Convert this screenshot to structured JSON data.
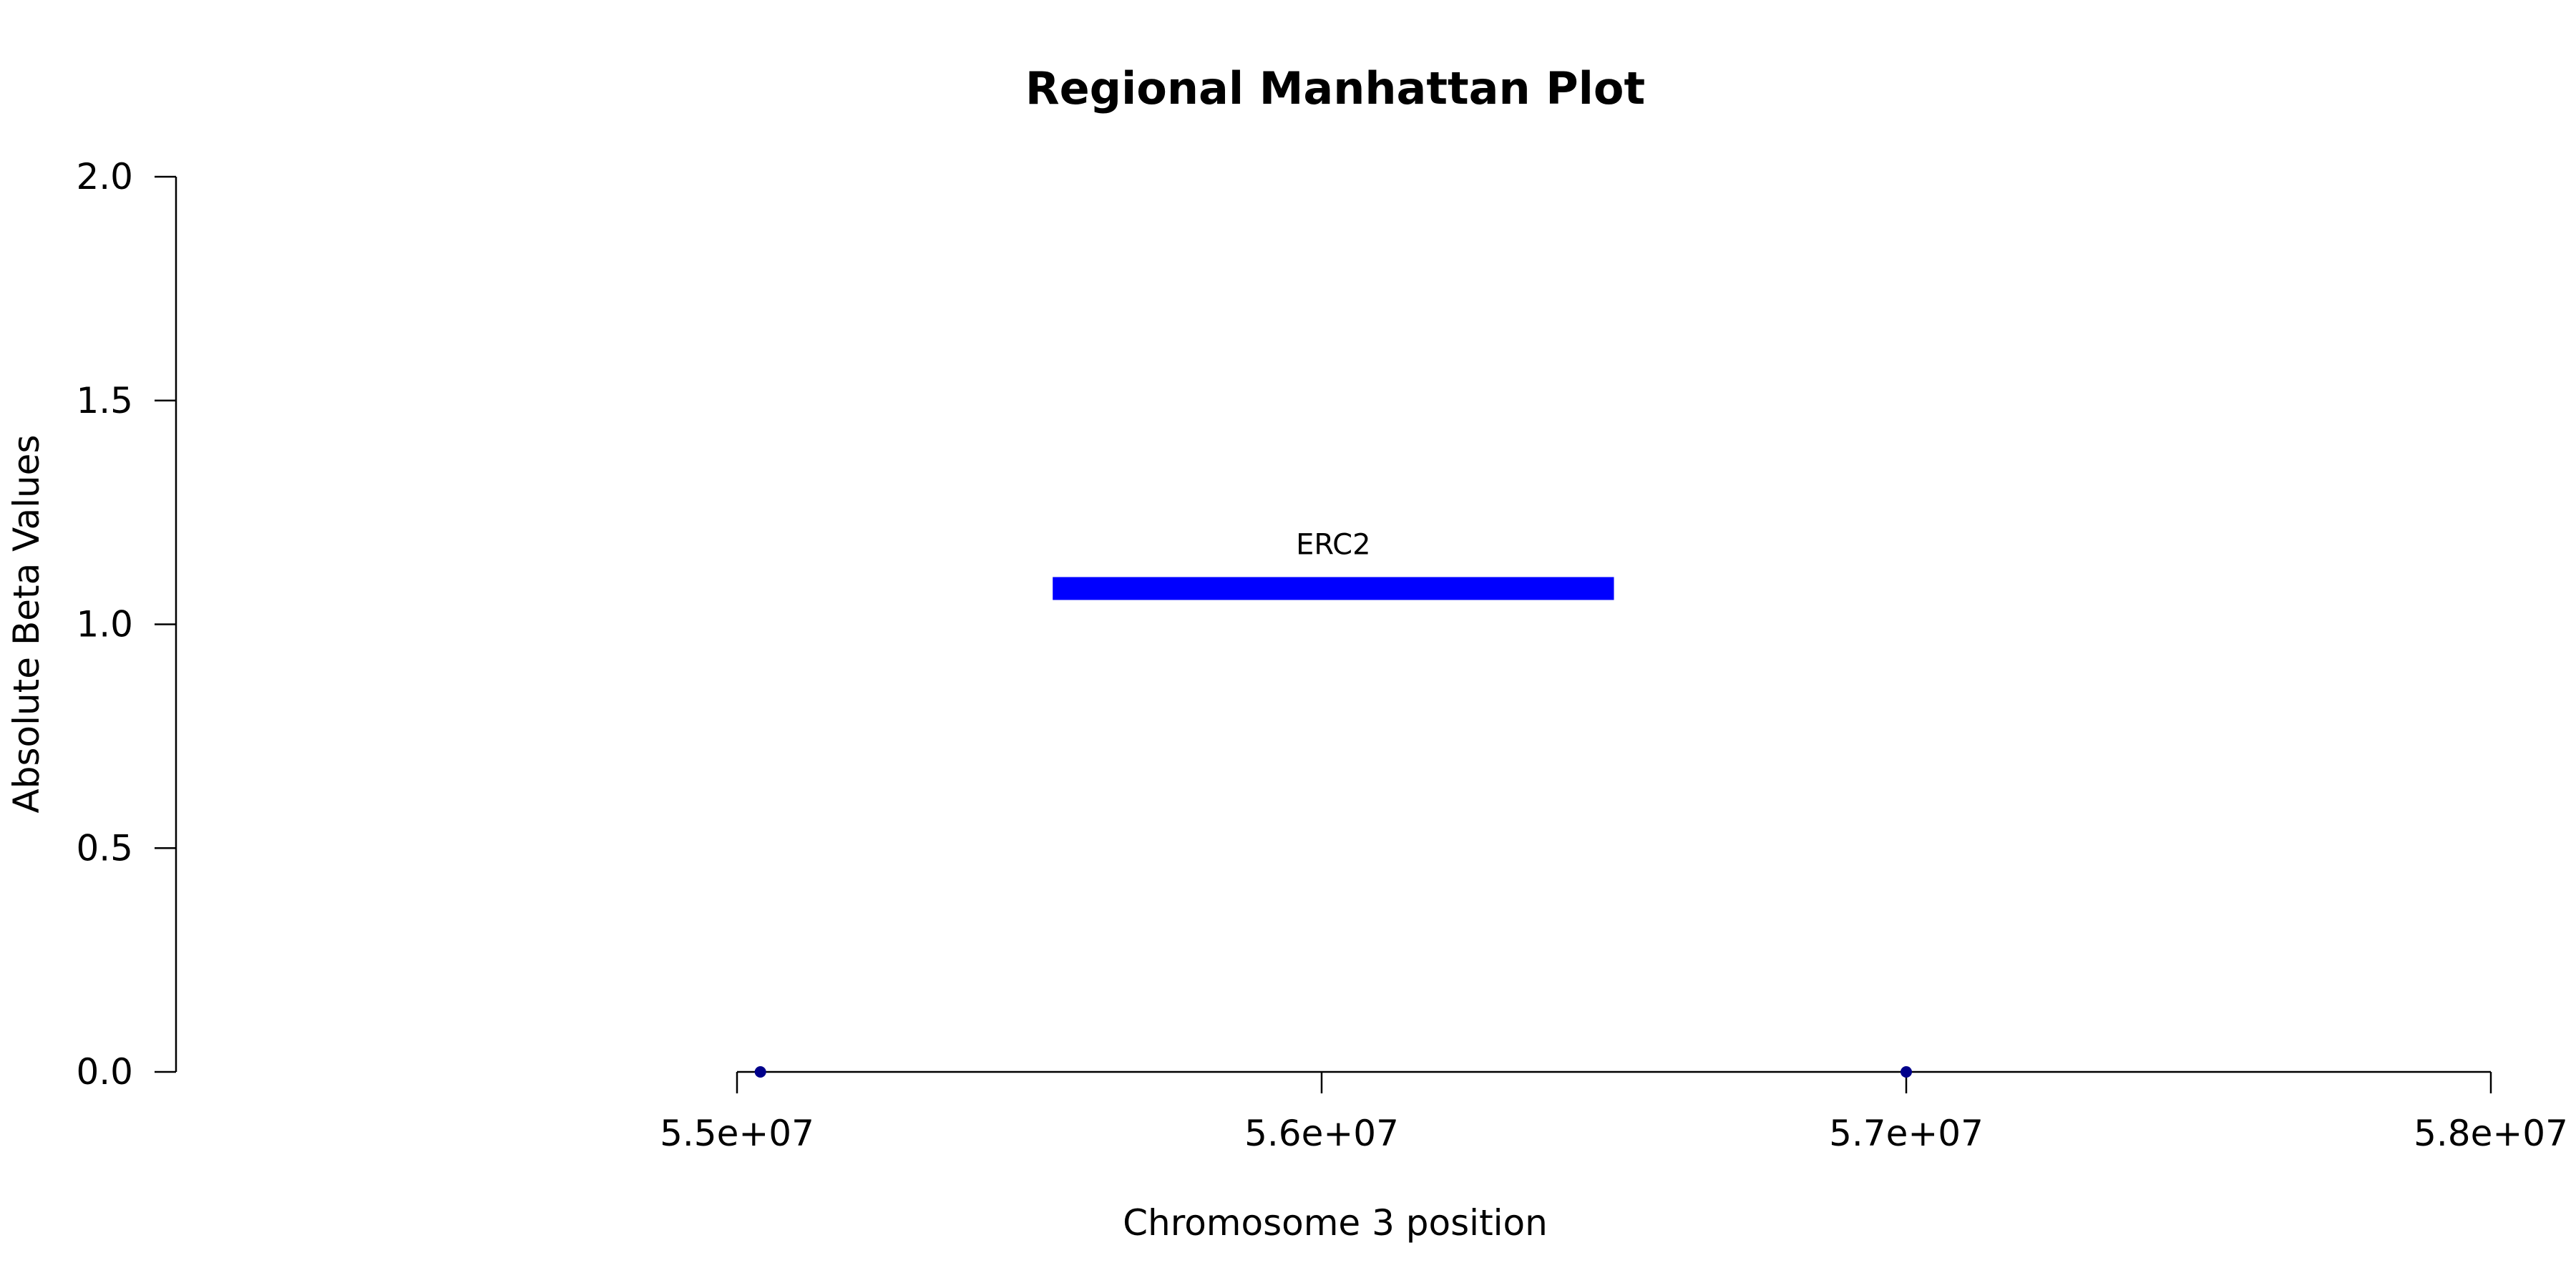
{
  "chart_data": {
    "type": "scatter",
    "title": "Regional Manhattan Plot",
    "xlabel": "Chromosome 3 position",
    "ylabel": "Absolute Beta Values",
    "xlim": [
      55000000,
      58000000
    ],
    "ylim": [
      0,
      2
    ],
    "x_ticks": [
      55000000,
      56000000,
      57000000,
      58000000
    ],
    "x_tick_labels": [
      "5.5e+07",
      "5.6e+07",
      "5.7e+07",
      "5.8e+07"
    ],
    "y_ticks": [
      0,
      0.5,
      1,
      1.5,
      2
    ],
    "y_tick_labels": [
      "0.0",
      "0.5",
      "1.0",
      "1.5",
      "2.0"
    ],
    "grid": false,
    "series": [
      {
        "points": [
          {
            "x": 55040000,
            "y": 0
          },
          {
            "x": 57000000,
            "y": 0
          }
        ],
        "color": "#00008b"
      }
    ],
    "genes": [
      {
        "name": "ERC2",
        "start": 55540000,
        "end": 56500000,
        "y": 1.08,
        "color": "#0000ff"
      }
    ]
  }
}
